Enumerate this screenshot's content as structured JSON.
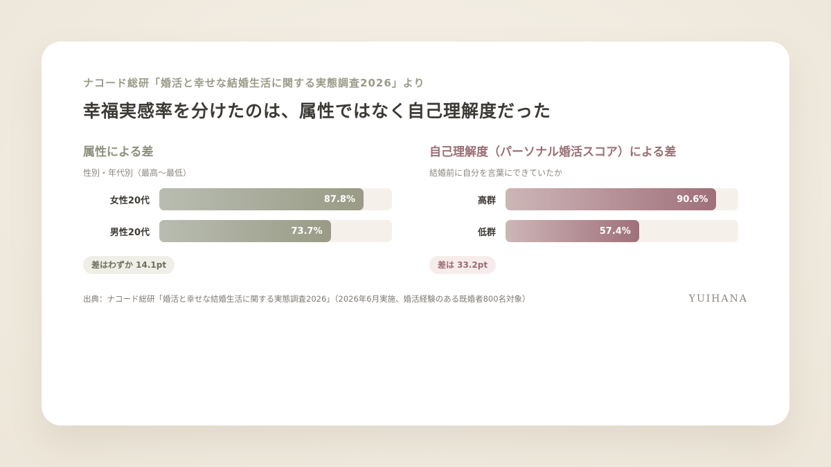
{
  "eyebrow": "ナコード総研「婚活と幸せな結婚生活に関する実態調査2026」より",
  "title": "幸福実感率を分けたのは、属性ではなく自己理解度だった",
  "chart_data": [
    {
      "type": "bar",
      "orientation": "horizontal",
      "title": "属性による差",
      "subtitle": "性別・年代別（最高〜最低）",
      "categories": [
        "女性20代",
        "男性20代"
      ],
      "values": [
        87.8,
        73.7
      ],
      "value_labels": [
        "87.8%",
        "73.7%"
      ],
      "xlim": [
        0,
        100
      ],
      "unit": "%",
      "annotation": "差はわずか 14.1pt",
      "color_from": "#b9bdb1",
      "color_to": "#999b86"
    },
    {
      "type": "bar",
      "orientation": "horizontal",
      "title": "自己理解度（パーソナル婚活スコア）による差",
      "subtitle": "結婚前に自分を言葉にできていたか",
      "categories": [
        "高群",
        "低群"
      ],
      "values": [
        90.6,
        57.4
      ],
      "value_labels": [
        "90.6%",
        "57.4%"
      ],
      "xlim": [
        0,
        100
      ],
      "unit": "%",
      "annotation": "差は 33.2pt",
      "color_from": "#cdb6b6",
      "color_to": "#a0707a"
    }
  ],
  "source": "出典：ナコード総研「婚活と幸せな結婚生活に関する実態調査2026」（2026年6月実施、婚活経験のある既婚者800名対象）",
  "brand": "YUIHANA",
  "colors": {
    "attribute_accent": "#8e907d",
    "self_understanding_accent": "#9a6f74",
    "track": "#f5f1ea"
  }
}
